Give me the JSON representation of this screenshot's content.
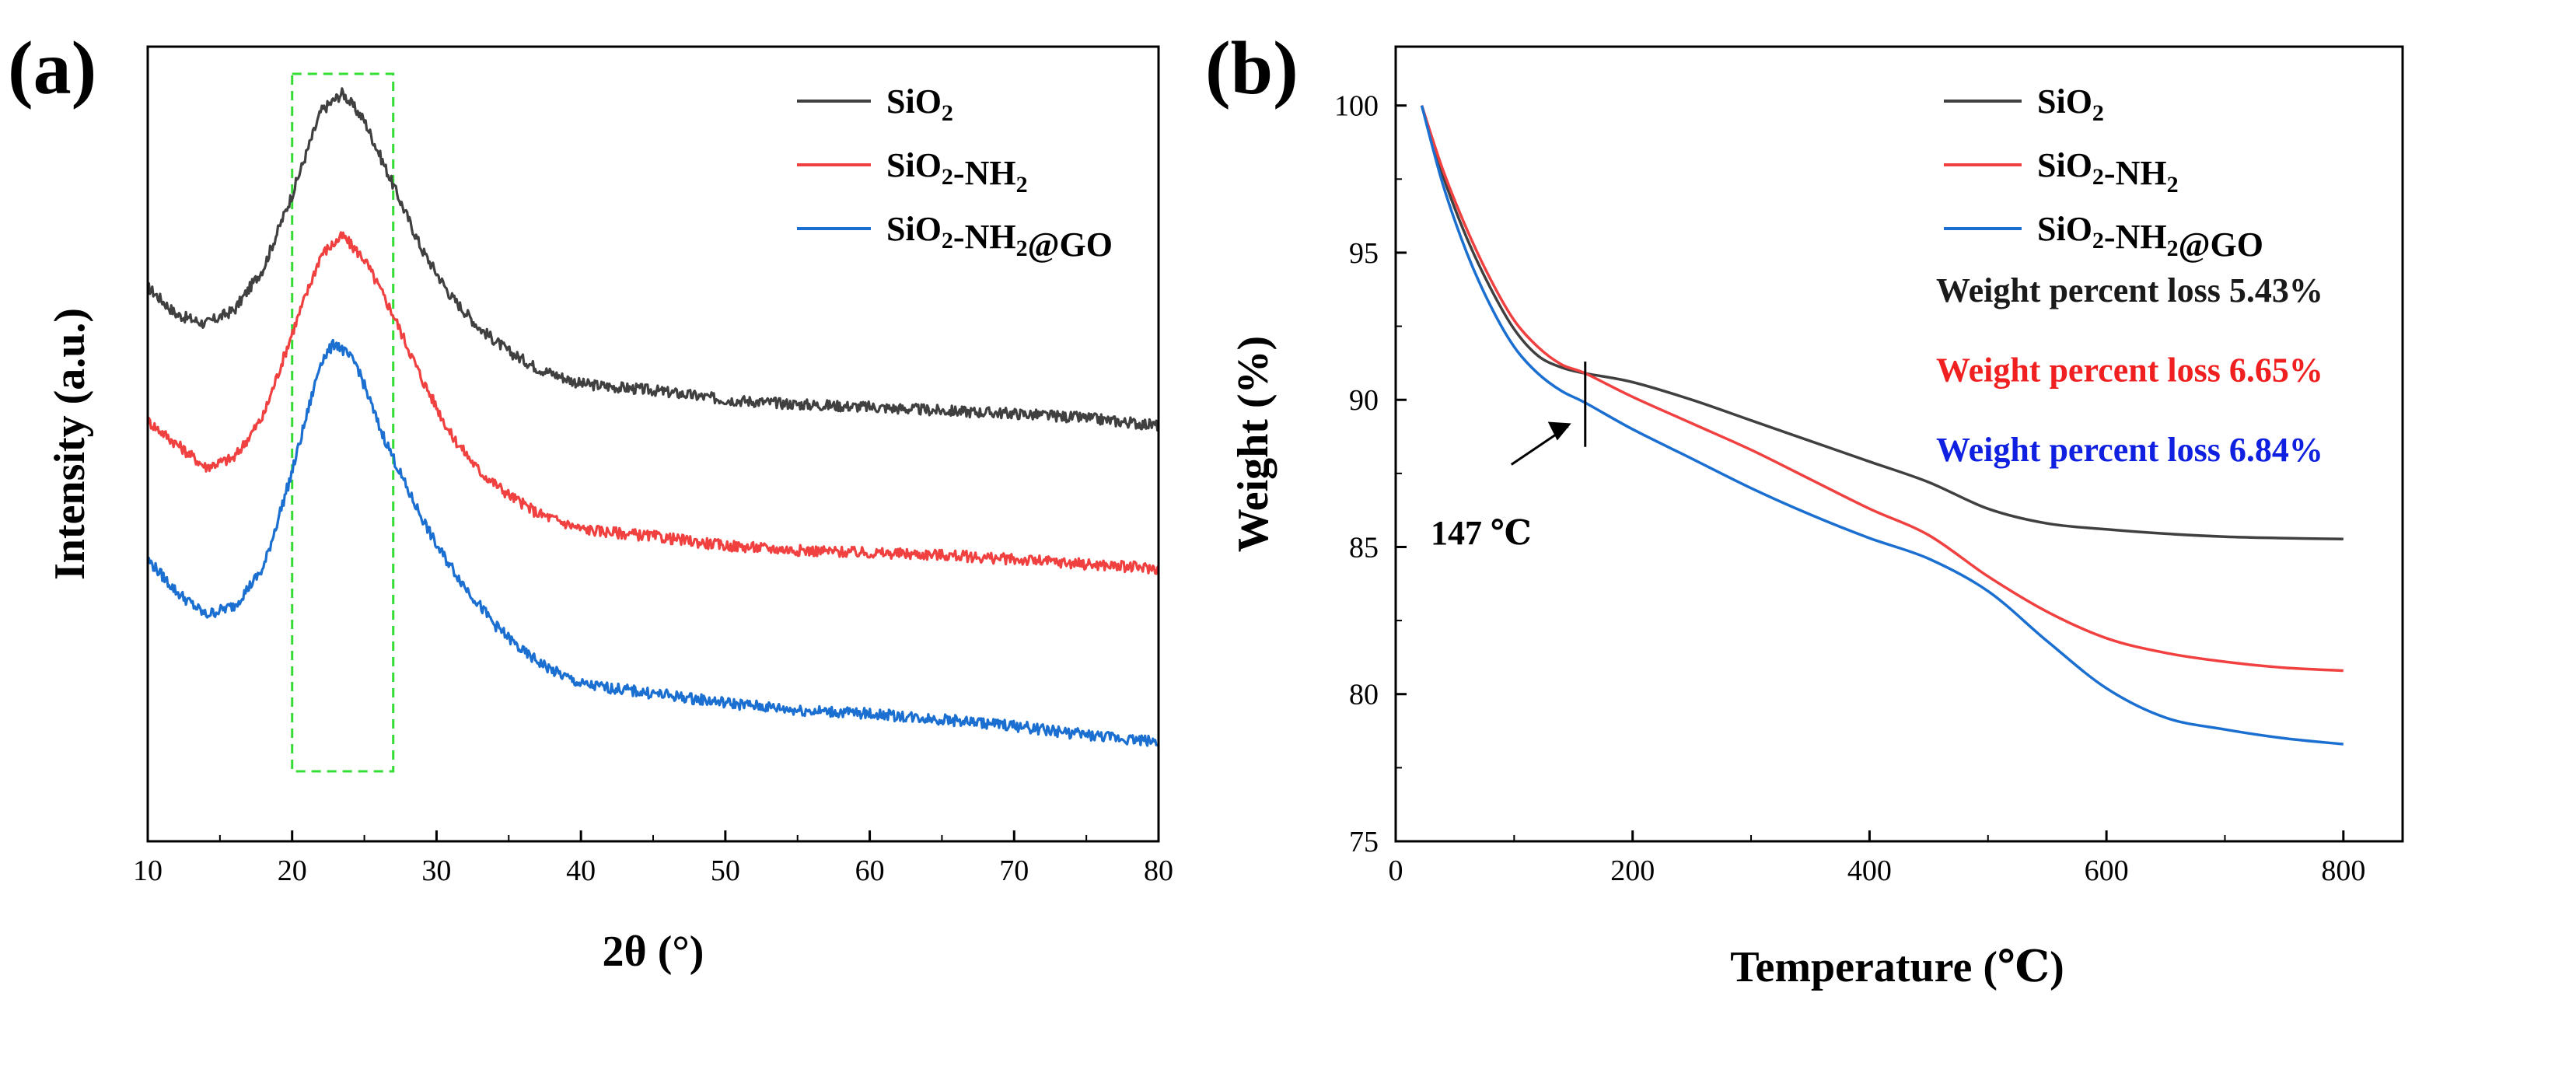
{
  "chart_data": [
    {
      "panel": "(a)",
      "type": "line",
      "title": "",
      "xlabel": "2θ (°)",
      "ylabel": "Intensity (a.u.)",
      "xlim": [
        10,
        80
      ],
      "xticks": [
        10,
        20,
        30,
        40,
        50,
        60,
        70,
        80
      ],
      "yticks": [],
      "highlight_box_x": [
        20,
        27
      ],
      "legend_position": "top-right",
      "series": [
        {
          "name": "SiO2",
          "label_main": "SiO",
          "label_sub": "2",
          "label_rest": "",
          "color": "#404040",
          "x": [
            10,
            12,
            14,
            16,
            18,
            20,
            22,
            23.5,
            25,
            27,
            29,
            31,
            33,
            35,
            37,
            40,
            45,
            50,
            55,
            60,
            65,
            70,
            75,
            80
          ],
          "y": [
            3.0,
            2.7,
            2.6,
            2.75,
            3.2,
            4.0,
            4.9,
            5.1,
            4.8,
            4.1,
            3.4,
            2.9,
            2.55,
            2.3,
            2.12,
            1.95,
            1.88,
            1.78,
            1.73,
            1.7,
            1.66,
            1.63,
            1.58,
            1.5
          ]
        },
        {
          "name": "SiO2-NH2",
          "label_main": "SiO",
          "label_sub": "2",
          "label_rest": "-NH",
          "label_sub2": "2",
          "color": "#f04040",
          "x": [
            10,
            12,
            14,
            16,
            18,
            20,
            22,
            23.5,
            25,
            27,
            29,
            31,
            33,
            35,
            37,
            40,
            45,
            50,
            55,
            60,
            65,
            70,
            75,
            80
          ],
          "y": [
            1.55,
            1.3,
            1.05,
            1.15,
            1.6,
            2.5,
            3.35,
            3.55,
            3.3,
            2.7,
            2.0,
            1.4,
            1.0,
            0.75,
            0.55,
            0.38,
            0.3,
            0.2,
            0.15,
            0.12,
            0.1,
            0.05,
            0.0,
            -0.05
          ]
        },
        {
          "name": "SiO2-NH2@GO",
          "label_main": "SiO",
          "label_sub": "2",
          "label_rest": "-NH",
          "label_sub2": "2",
          "label_tail": "@GO",
          "color": "#1a6fd0",
          "x": [
            10,
            12,
            14,
            16,
            18,
            20,
            22,
            23,
            24.5,
            26,
            28,
            30,
            32,
            34,
            36,
            38,
            40,
            45,
            50,
            55,
            60,
            65,
            70,
            75,
            80
          ],
          "y": [
            0.05,
            -0.3,
            -0.55,
            -0.45,
            -0.05,
            1.0,
            2.2,
            2.4,
            2.15,
            1.5,
            0.8,
            0.2,
            -0.25,
            -0.65,
            -0.95,
            -1.15,
            -1.3,
            -1.4,
            -1.5,
            -1.58,
            -1.62,
            -1.68,
            -1.75,
            -1.85,
            -1.92
          ]
        }
      ]
    },
    {
      "panel": "(b)",
      "type": "line",
      "title": "",
      "xlabel": "Temperature (℃)",
      "ylabel": "Weight (%)",
      "xlim": [
        0,
        850
      ],
      "ylim": [
        75,
        102
      ],
      "xticks": [
        0,
        200,
        400,
        600,
        800
      ],
      "yticks": [
        75,
        80,
        85,
        90,
        95,
        100
      ],
      "legend_position": "top-right",
      "annotation": {
        "text": "147 ℃",
        "x": 160
      },
      "loss_labels": [
        {
          "text": "Weight percent loss 5.43%",
          "color": "#1a1a1a"
        },
        {
          "text": "Weight percent loss 6.65%",
          "color": "#f02020"
        },
        {
          "text": "Weight percent loss 6.84%",
          "color": "#1020e0"
        }
      ],
      "series": [
        {
          "name": "SiO2",
          "label_main": "SiO",
          "label_sub": "2",
          "label_rest": "",
          "color": "#404040",
          "x": [
            22,
            40,
            60,
            80,
            100,
            120,
            140,
            160,
            200,
            250,
            300,
            350,
            400,
            450,
            500,
            550,
            600,
            650,
            700,
            750,
            800
          ],
          "y": [
            100,
            97.6,
            95.5,
            93.8,
            92.4,
            91.5,
            91.1,
            90.9,
            90.6,
            90.0,
            89.3,
            88.6,
            87.9,
            87.2,
            86.3,
            85.8,
            85.6,
            85.45,
            85.35,
            85.3,
            85.27
          ]
        },
        {
          "name": "SiO2-NH2",
          "label_main": "SiO",
          "label_sub": "2",
          "label_rest": "-NH",
          "label_sub2": "2",
          "color": "#f04040",
          "x": [
            22,
            40,
            60,
            80,
            100,
            120,
            140,
            160,
            200,
            250,
            300,
            350,
            400,
            450,
            500,
            550,
            600,
            650,
            700,
            750,
            800
          ],
          "y": [
            100,
            97.8,
            95.8,
            94.1,
            92.7,
            91.8,
            91.2,
            90.9,
            90.1,
            89.2,
            88.3,
            87.3,
            86.3,
            85.4,
            84.0,
            82.8,
            81.9,
            81.4,
            81.1,
            80.9,
            80.8
          ]
        },
        {
          "name": "SiO2-NH2@GO",
          "label_main": "SiO",
          "label_sub": "2",
          "label_rest": "-NH",
          "label_sub2": "2",
          "label_tail": "@GO",
          "color": "#1a6fd0",
          "x": [
            22,
            40,
            60,
            80,
            100,
            120,
            140,
            160,
            200,
            250,
            300,
            350,
            400,
            450,
            500,
            550,
            600,
            650,
            700,
            750,
            800
          ],
          "y": [
            100,
            97.3,
            95.0,
            93.2,
            91.8,
            90.9,
            90.3,
            89.9,
            89.0,
            88.0,
            87.0,
            86.1,
            85.3,
            84.6,
            83.5,
            81.8,
            80.2,
            79.2,
            78.8,
            78.5,
            78.3
          ]
        }
      ]
    }
  ]
}
